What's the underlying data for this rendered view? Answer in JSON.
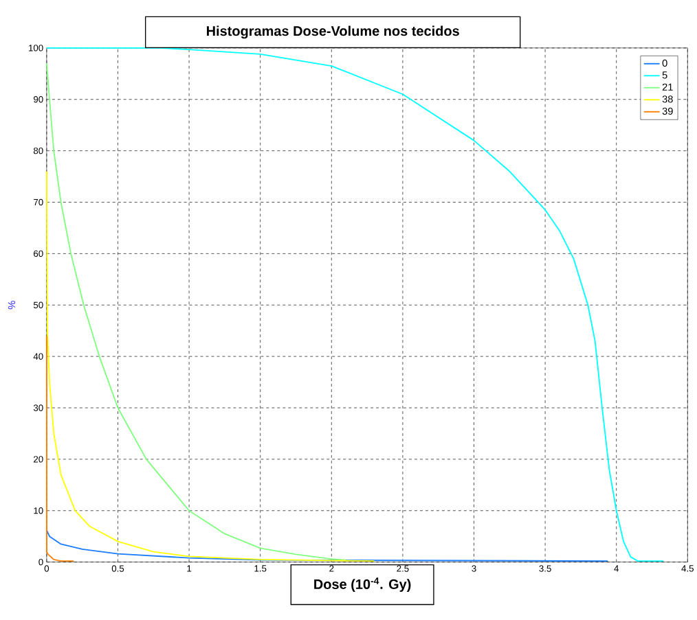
{
  "chart_data": {
    "type": "line",
    "title": "Histogramas Dose-Volume nos tecidos",
    "xlabel": "Dose (10$^{-4}$. Gy)",
    "ylabel": "%",
    "xlim": [
      0,
      4.5
    ],
    "ylim": [
      0,
      100
    ],
    "xticks": [
      0,
      0.5,
      1,
      1.5,
      2,
      2.5,
      3,
      3.5,
      4,
      4.5
    ],
    "yticks": [
      0,
      10,
      20,
      30,
      40,
      50,
      60,
      70,
      80,
      90,
      100
    ],
    "grid": true,
    "legend": "top right",
    "series": [
      {
        "name": "0",
        "color": "#1a7cff",
        "x": [
          0,
          0.02,
          0.1,
          0.25,
          0.5,
          1.0,
          1.5,
          3.94
        ],
        "values": [
          6.2,
          5,
          3.5,
          2.5,
          1.6,
          0.8,
          0.4,
          0.2
        ]
      },
      {
        "name": "5",
        "color": "#00ffff",
        "x": [
          0,
          0.8,
          1.0,
          1.5,
          2.0,
          2.5,
          3.0,
          3.25,
          3.5,
          3.6,
          3.7,
          3.8,
          3.85,
          3.9,
          3.95,
          4.0,
          4.05,
          4.1,
          4.15,
          4.33
        ],
        "values": [
          100,
          100,
          99.7,
          98.8,
          96.5,
          91,
          82,
          76,
          68.5,
          64.5,
          59,
          50,
          43,
          30,
          18,
          10,
          4,
          1,
          0.2,
          0.2
        ]
      },
      {
        "name": "21",
        "color": "#80ff80",
        "x": [
          0,
          0.02,
          0.05,
          0.1,
          0.17,
          0.26,
          0.37,
          0.5,
          0.7,
          1.0,
          1.25,
          1.5,
          1.75,
          2.0,
          2.1
        ],
        "values": [
          97,
          90,
          80,
          70,
          60,
          50,
          40,
          30,
          20,
          10,
          5.5,
          2.7,
          1.5,
          0.6,
          0.4
        ]
      },
      {
        "name": "38",
        "color": "#ffff00",
        "x": [
          0,
          0.005,
          0.02,
          0.05,
          0.1,
          0.2,
          0.3,
          0.5,
          0.75,
          1.0,
          1.5,
          2.0,
          2.3
        ],
        "values": [
          76,
          45,
          35,
          25,
          17,
          10,
          7,
          4,
          2,
          1.1,
          0.5,
          0.3,
          0.2
        ]
      },
      {
        "name": "39",
        "color": "#ff7f00",
        "x": [
          0,
          0,
          0.01,
          0.05,
          0.1,
          0.19
        ],
        "values": [
          44,
          2,
          1.5,
          0.5,
          0.2,
          0.2
        ]
      }
    ]
  }
}
